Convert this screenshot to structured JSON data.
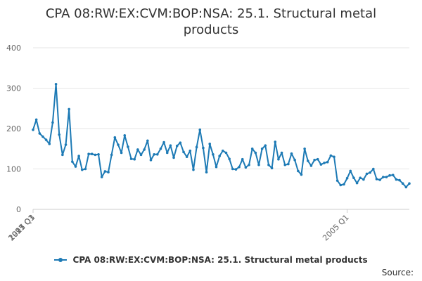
{
  "chart_data": {
    "type": "line",
    "title": "CPA 08:RW:EX:CVM:BOP:NSA: 25.1. Structural metal products",
    "xlabel": "",
    "ylabel": "",
    "ylim": [
      0,
      400
    ],
    "yticks": [
      "0",
      "100",
      "200",
      "300",
      "400"
    ],
    "xtick_labels": [
      {
        "label": "1997 Q1",
        "x": "1997-01"
      },
      {
        "label": "2005 Q1",
        "x": "2005-01"
      },
      {
        "label": "2013 Q1",
        "x": "2013-01"
      },
      {
        "label": "2021 Q1",
        "x": "2021-01"
      },
      {
        "label": "2025 Q3",
        "x": "2025-07"
      }
    ],
    "grid": true,
    "legend_position": "bottom",
    "color": "#1d7ab5",
    "series": [
      {
        "name": "CPA 08:RW:EX:CVM:BOP:NSA: 25.1. Structural metal products",
        "points": [
          [
            "1997-01",
            197
          ],
          [
            "1997-02",
            222
          ],
          [
            "1997-03",
            188
          ],
          [
            "1997-04",
            180
          ],
          [
            "1997-05",
            172
          ],
          [
            "1997-06",
            162
          ],
          [
            "1997-07",
            215
          ],
          [
            "1997-08",
            310
          ],
          [
            "1997-09",
            185
          ],
          [
            "1997-10",
            135
          ],
          [
            "1997-11",
            160
          ],
          [
            "1997-12",
            248
          ],
          [
            "1998-01",
            118
          ],
          [
            "1998-02",
            106
          ],
          [
            "1998-03",
            132
          ],
          [
            "1998-04",
            98
          ],
          [
            "1998-05",
            100
          ],
          [
            "1998-06",
            137
          ],
          [
            "1998-07",
            137
          ],
          [
            "1998-08",
            135
          ],
          [
            "1998-09",
            136
          ],
          [
            "1998-10",
            80
          ],
          [
            "1998-11",
            94
          ],
          [
            "1998-12",
            92
          ],
          [
            "1999-01",
            135
          ],
          [
            "1999-02",
            178
          ],
          [
            "1999-03",
            160
          ],
          [
            "1999-04",
            140
          ],
          [
            "1999-05",
            183
          ],
          [
            "1999-06",
            155
          ],
          [
            "1999-07",
            125
          ],
          [
            "1999-08",
            124
          ],
          [
            "1999-09",
            148
          ],
          [
            "1999-10",
            135
          ],
          [
            "1999-11",
            148
          ],
          [
            "1999-12",
            170
          ],
          [
            "2000-01",
            122
          ],
          [
            "2000-02",
            136
          ],
          [
            "2000-03",
            136
          ],
          [
            "2000-04",
            150
          ],
          [
            "2000-05",
            166
          ],
          [
            "2000-06",
            140
          ],
          [
            "2000-07",
            158
          ],
          [
            "2000-08",
            128
          ],
          [
            "2000-09",
            157
          ],
          [
            "2000-10",
            165
          ],
          [
            "2000-11",
            142
          ],
          [
            "2000-12",
            130
          ],
          [
            "2001-01",
            145
          ],
          [
            "2001-02",
            98
          ],
          [
            "2001-03",
            154
          ],
          [
            "2001-04",
            197
          ],
          [
            "2001-05",
            152
          ],
          [
            "2001-06",
            92
          ],
          [
            "2001-07",
            162
          ],
          [
            "2001-08",
            136
          ],
          [
            "2001-09",
            105
          ],
          [
            "2001-10",
            132
          ],
          [
            "2001-11",
            145
          ],
          [
            "2001-12",
            140
          ],
          [
            "2002-01",
            125
          ],
          [
            "2002-02",
            100
          ],
          [
            "2002-03",
            99
          ],
          [
            "2002-04",
            105
          ],
          [
            "2002-05",
            124
          ],
          [
            "2002-06",
            104
          ],
          [
            "2002-07",
            110
          ],
          [
            "2002-08",
            150
          ],
          [
            "2002-09",
            140
          ],
          [
            "2002-10",
            110
          ],
          [
            "2002-11",
            150
          ],
          [
            "2002-12",
            158
          ],
          [
            "2003-01",
            110
          ],
          [
            "2003-02",
            102
          ],
          [
            "2003-03",
            167
          ],
          [
            "2003-04",
            124
          ],
          [
            "2003-05",
            140
          ],
          [
            "2003-06",
            110
          ],
          [
            "2003-07",
            112
          ],
          [
            "2003-08",
            138
          ],
          [
            "2003-09",
            122
          ],
          [
            "2003-10",
            95
          ],
          [
            "2003-11",
            86
          ],
          [
            "2003-12",
            150
          ],
          [
            "2004-01",
            120
          ],
          [
            "2004-02",
            108
          ],
          [
            "2004-03",
            122
          ],
          [
            "2004-04",
            124
          ],
          [
            "2004-05",
            111
          ],
          [
            "2004-06",
            115
          ],
          [
            "2004-07",
            117
          ],
          [
            "2004-08",
            133
          ],
          [
            "2004-09",
            130
          ],
          [
            "2004-10",
            71
          ],
          [
            "2004-11",
            60
          ],
          [
            "2004-12",
            62
          ],
          [
            "2005-01",
            77
          ],
          [
            "2005-02",
            95
          ],
          [
            "2005-03",
            78
          ],
          [
            "2005-04",
            65
          ],
          [
            "2005-05",
            78
          ],
          [
            "2005-06",
            74
          ],
          [
            "2005-07",
            88
          ],
          [
            "2005-08",
            91
          ],
          [
            "2005-09",
            100
          ],
          [
            "2005-10",
            75
          ],
          [
            "2005-11",
            73
          ],
          [
            "2005-12",
            80
          ],
          [
            "2006-01",
            80
          ],
          [
            "2006-02",
            84
          ],
          [
            "2006-03",
            85
          ],
          [
            "2006-04",
            74
          ],
          [
            "2006-05",
            72
          ],
          [
            "2006-06",
            64
          ],
          [
            "2006-07",
            55
          ],
          [
            "2006-08",
            64
          ]
        ]
      }
    ]
  },
  "source_label": "Source:"
}
